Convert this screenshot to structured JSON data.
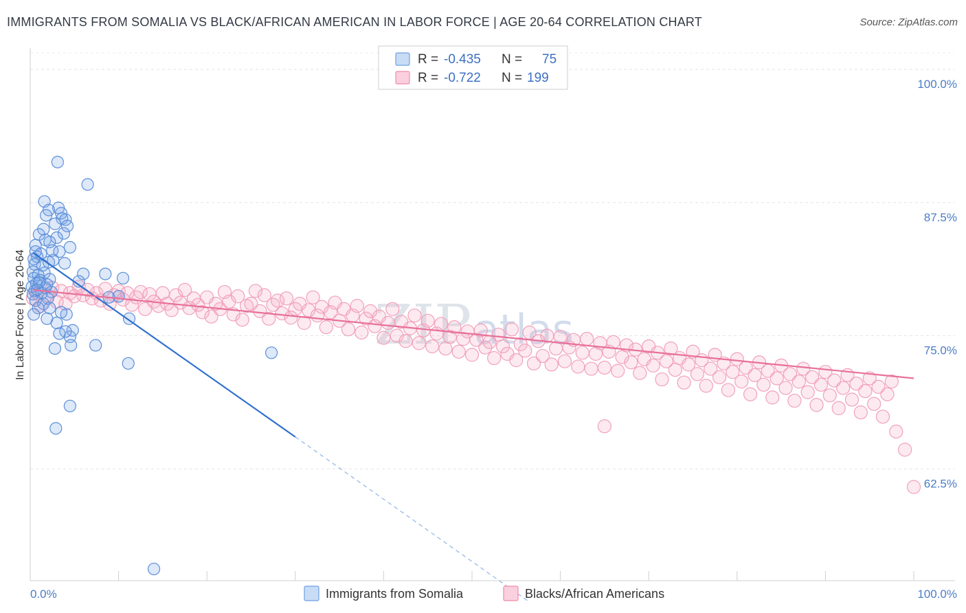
{
  "title": "IMMIGRANTS FROM SOMALIA VS BLACK/AFRICAN AMERICAN IN LABOR FORCE | AGE 20-64 CORRELATION CHART",
  "source": "Source: ZipAtlas.com",
  "watermark": "ZIPatlas",
  "legend": {
    "rows": [
      {
        "r_label": "R =",
        "r_value": "-0.435",
        "n_label": "N =",
        "n_value": "75",
        "color": "#6ea0e0"
      },
      {
        "r_label": "R =",
        "r_value": "-0.722",
        "n_label": "N =",
        "n_value": "199",
        "color": "#f08aaa"
      }
    ]
  },
  "bottom_legend": [
    "Immigrants from Somalia",
    "Blacks/African Americans"
  ],
  "chart_data": {
    "type": "scatter",
    "ylabel": "In Labor Force | Age 20-64",
    "xlim": [
      0,
      100
    ],
    "ylim": [
      52,
      102
    ],
    "x_tick_labels": [
      "0.0%",
      "100.0%"
    ],
    "y_ticks": [
      62.5,
      75.0,
      87.5,
      100.0
    ],
    "y_tick_labels": [
      "62.5%",
      "75.0%",
      "87.5%",
      "100.0%"
    ],
    "grid": "horizontal dashed",
    "series": [
      {
        "name": "Immigrants from Somalia",
        "color": "#5b8fd9",
        "trend": {
          "x0": 0.3,
          "y0": 82.8,
          "x1": 30,
          "y1": 65.5,
          "dashed_to_x": 56.5,
          "dashed_to_y": 50.0
        },
        "points": [
          [
            3.1,
            91.3
          ],
          [
            6.5,
            89.2
          ],
          [
            1.6,
            87.6
          ],
          [
            3.2,
            87.0
          ],
          [
            2.1,
            86.8
          ],
          [
            3.5,
            86.5
          ],
          [
            1.8,
            86.3
          ],
          [
            3.6,
            86.0
          ],
          [
            4.0,
            85.9
          ],
          [
            4.2,
            85.3
          ],
          [
            2.8,
            85.5
          ],
          [
            1.5,
            85.0
          ],
          [
            3.8,
            84.6
          ],
          [
            1.0,
            84.5
          ],
          [
            1.7,
            84.0
          ],
          [
            3.0,
            84.2
          ],
          [
            2.2,
            83.8
          ],
          [
            0.6,
            83.5
          ],
          [
            4.5,
            83.3
          ],
          [
            2.5,
            83.0
          ],
          [
            3.3,
            82.9
          ],
          [
            1.2,
            82.7
          ],
          [
            0.8,
            82.4
          ],
          [
            2.6,
            82.1
          ],
          [
            0.4,
            82.2
          ],
          [
            0.5,
            81.7
          ],
          [
            1.4,
            81.6
          ],
          [
            3.9,
            81.8
          ],
          [
            0.3,
            81.0
          ],
          [
            1.6,
            80.9
          ],
          [
            0.9,
            80.7
          ],
          [
            0.4,
            80.4
          ],
          [
            1.1,
            80.2
          ],
          [
            2.2,
            80.3
          ],
          [
            6.0,
            80.8
          ],
          [
            8.5,
            80.8
          ],
          [
            10.5,
            80.4
          ],
          [
            0.7,
            79.9
          ],
          [
            1.9,
            79.8
          ],
          [
            0.2,
            79.6
          ],
          [
            1.7,
            79.5
          ],
          [
            0.5,
            79.2
          ],
          [
            1.3,
            79.0
          ],
          [
            2.4,
            79.1
          ],
          [
            0.3,
            78.9
          ],
          [
            10.0,
            78.7
          ],
          [
            8.9,
            78.6
          ],
          [
            0.6,
            78.3
          ],
          [
            1.5,
            78.0
          ],
          [
            0.9,
            77.6
          ],
          [
            2.2,
            77.6
          ],
          [
            4.1,
            77.0
          ],
          [
            3.5,
            77.2
          ],
          [
            0.4,
            77.0
          ],
          [
            1.9,
            76.6
          ],
          [
            3.0,
            76.2
          ],
          [
            4.8,
            75.5
          ],
          [
            11.2,
            76.6
          ],
          [
            4.5,
            74.9
          ],
          [
            7.4,
            74.1
          ],
          [
            2.8,
            73.8
          ],
          [
            11.1,
            72.4
          ],
          [
            4.6,
            74.1
          ],
          [
            27.3,
            73.4
          ],
          [
            4.5,
            68.4
          ],
          [
            2.9,
            66.3
          ],
          [
            14.0,
            53.1
          ],
          [
            3.3,
            75.2
          ],
          [
            2.0,
            78.5
          ],
          [
            0.8,
            79.3
          ],
          [
            1.0,
            80.0
          ],
          [
            4.0,
            75.4
          ],
          [
            2.1,
            81.9
          ],
          [
            5.5,
            80.1
          ],
          [
            0.6,
            82.9
          ]
        ]
      },
      {
        "name": "Blacks/African Americans",
        "color": "#f29bb6",
        "trend": {
          "x0": 0.3,
          "y0": 79.3,
          "x1": 100,
          "y1": 71.0
        },
        "points": [
          [
            0.3,
            78.5
          ],
          [
            0.8,
            79.0
          ],
          [
            1.2,
            77.8
          ],
          [
            2.0,
            78.8
          ],
          [
            2.5,
            79.5
          ],
          [
            3.0,
            78.2
          ],
          [
            3.5,
            79.2
          ],
          [
            4.0,
            78.0
          ],
          [
            4.5,
            79.0
          ],
          [
            5.0,
            78.7
          ],
          [
            5.5,
            79.6
          ],
          [
            6.0,
            78.8
          ],
          [
            6.5,
            79.3
          ],
          [
            7.0,
            78.5
          ],
          [
            7.5,
            79.0
          ],
          [
            8.0,
            78.3
          ],
          [
            8.5,
            79.4
          ],
          [
            9.0,
            78.0
          ],
          [
            9.5,
            78.8
          ],
          [
            10.0,
            79.2
          ],
          [
            10.5,
            78.4
          ],
          [
            11.0,
            79.0
          ],
          [
            11.5,
            77.9
          ],
          [
            12.0,
            78.6
          ],
          [
            12.5,
            79.1
          ],
          [
            13.0,
            77.5
          ],
          [
            13.5,
            78.9
          ],
          [
            14.0,
            78.2
          ],
          [
            14.5,
            77.8
          ],
          [
            15.0,
            79.0
          ],
          [
            15.5,
            78.0
          ],
          [
            16.0,
            77.4
          ],
          [
            16.5,
            78.8
          ],
          [
            17.0,
            78.1
          ],
          [
            17.5,
            79.3
          ],
          [
            18.0,
            77.6
          ],
          [
            18.5,
            78.5
          ],
          [
            19.0,
            77.9
          ],
          [
            19.5,
            77.2
          ],
          [
            20.0,
            78.6
          ],
          [
            20.5,
            76.8
          ],
          [
            21.0,
            78.0
          ],
          [
            21.5,
            77.5
          ],
          [
            22.0,
            79.1
          ],
          [
            22.5,
            78.2
          ],
          [
            23.0,
            77.0
          ],
          [
            23.5,
            78.7
          ],
          [
            24.0,
            76.5
          ],
          [
            24.5,
            77.8
          ],
          [
            25.0,
            78.0
          ],
          [
            25.5,
            79.2
          ],
          [
            26.0,
            77.3
          ],
          [
            26.5,
            78.8
          ],
          [
            27.0,
            76.6
          ],
          [
            27.5,
            77.9
          ],
          [
            28.0,
            78.3
          ],
          [
            28.5,
            77.1
          ],
          [
            29.0,
            78.5
          ],
          [
            29.5,
            76.7
          ],
          [
            30.0,
            77.5
          ],
          [
            30.5,
            78.0
          ],
          [
            31.0,
            76.2
          ],
          [
            31.5,
            77.4
          ],
          [
            32.0,
            78.6
          ],
          [
            32.5,
            76.9
          ],
          [
            33.0,
            77.7
          ],
          [
            33.5,
            75.8
          ],
          [
            34.0,
            77.2
          ],
          [
            34.5,
            78.1
          ],
          [
            35.0,
            76.4
          ],
          [
            35.5,
            77.5
          ],
          [
            36.0,
            75.6
          ],
          [
            36.5,
            76.9
          ],
          [
            37.0,
            77.8
          ],
          [
            37.5,
            75.3
          ],
          [
            38.0,
            76.6
          ],
          [
            38.5,
            77.3
          ],
          [
            39.0,
            75.9
          ],
          [
            39.5,
            76.8
          ],
          [
            40.0,
            74.8
          ],
          [
            40.5,
            76.2
          ],
          [
            41.0,
            77.5
          ],
          [
            41.5,
            75.0
          ],
          [
            42.0,
            76.3
          ],
          [
            42.5,
            74.5
          ],
          [
            43.0,
            75.7
          ],
          [
            43.5,
            76.9
          ],
          [
            44.0,
            74.3
          ],
          [
            44.5,
            75.5
          ],
          [
            45.0,
            76.4
          ],
          [
            45.5,
            74.0
          ],
          [
            46.0,
            75.2
          ],
          [
            46.5,
            76.1
          ],
          [
            47.0,
            73.8
          ],
          [
            47.5,
            74.9
          ],
          [
            48.0,
            75.8
          ],
          [
            48.5,
            73.5
          ],
          [
            49.0,
            74.7
          ],
          [
            49.5,
            75.4
          ],
          [
            50.0,
            73.2
          ],
          [
            50.5,
            74.6
          ],
          [
            51.0,
            75.5
          ],
          [
            51.5,
            73.9
          ],
          [
            52.0,
            74.4
          ],
          [
            52.5,
            72.9
          ],
          [
            53.0,
            75.1
          ],
          [
            53.5,
            74.0
          ],
          [
            54.0,
            73.3
          ],
          [
            54.5,
            75.6
          ],
          [
            55.0,
            72.7
          ],
          [
            55.5,
            74.2
          ],
          [
            56.0,
            73.6
          ],
          [
            56.5,
            75.3
          ],
          [
            57.0,
            72.4
          ],
          [
            57.5,
            74.5
          ],
          [
            58.0,
            73.1
          ],
          [
            58.5,
            75.0
          ],
          [
            59.0,
            72.3
          ],
          [
            59.5,
            73.8
          ],
          [
            60.0,
            74.9
          ],
          [
            60.5,
            72.6
          ],
          [
            61.0,
            73.9
          ],
          [
            61.5,
            74.6
          ],
          [
            62.0,
            72.1
          ],
          [
            62.5,
            73.4
          ],
          [
            63.0,
            74.7
          ],
          [
            63.5,
            71.9
          ],
          [
            64.0,
            73.3
          ],
          [
            64.5,
            74.3
          ],
          [
            65.0,
            72.0
          ],
          [
            65.5,
            73.5
          ],
          [
            66.0,
            74.4
          ],
          [
            66.5,
            71.7
          ],
          [
            67.0,
            73.0
          ],
          [
            67.5,
            74.1
          ],
          [
            68.0,
            72.5
          ],
          [
            68.5,
            73.7
          ],
          [
            69.0,
            71.5
          ],
          [
            69.5,
            72.8
          ],
          [
            70.0,
            74.0
          ],
          [
            70.5,
            72.2
          ],
          [
            71.0,
            73.4
          ],
          [
            71.5,
            70.9
          ],
          [
            72.0,
            72.6
          ],
          [
            72.5,
            73.8
          ],
          [
            73.0,
            71.8
          ],
          [
            73.5,
            72.9
          ],
          [
            74.0,
            70.6
          ],
          [
            74.5,
            72.3
          ],
          [
            75.0,
            73.5
          ],
          [
            75.5,
            71.4
          ],
          [
            76.0,
            72.7
          ],
          [
            76.5,
            70.3
          ],
          [
            77.0,
            71.9
          ],
          [
            77.5,
            73.2
          ],
          [
            78.0,
            71.1
          ],
          [
            78.5,
            72.4
          ],
          [
            79.0,
            69.9
          ],
          [
            79.5,
            71.6
          ],
          [
            80.0,
            72.8
          ],
          [
            80.5,
            70.7
          ],
          [
            81.0,
            72.0
          ],
          [
            81.5,
            69.5
          ],
          [
            82.0,
            71.3
          ],
          [
            82.5,
            72.5
          ],
          [
            83.0,
            70.4
          ],
          [
            83.5,
            71.7
          ],
          [
            84.0,
            69.2
          ],
          [
            84.5,
            71.0
          ],
          [
            85.0,
            72.2
          ],
          [
            85.5,
            70.1
          ],
          [
            86.0,
            71.4
          ],
          [
            86.5,
            68.9
          ],
          [
            87.0,
            70.7
          ],
          [
            87.5,
            71.9
          ],
          [
            88.0,
            69.7
          ],
          [
            88.5,
            71.1
          ],
          [
            89.0,
            68.5
          ],
          [
            89.5,
            70.4
          ],
          [
            90.0,
            71.6
          ],
          [
            90.5,
            69.4
          ],
          [
            91.0,
            70.8
          ],
          [
            91.5,
            68.2
          ],
          [
            92.0,
            70.1
          ],
          [
            92.5,
            71.3
          ],
          [
            93.0,
            69.0
          ],
          [
            93.5,
            70.5
          ],
          [
            94.0,
            67.8
          ],
          [
            94.5,
            69.8
          ],
          [
            95.0,
            71.0
          ],
          [
            95.5,
            68.6
          ],
          [
            96.0,
            70.2
          ],
          [
            96.5,
            67.4
          ],
          [
            97.0,
            69.5
          ],
          [
            97.5,
            70.7
          ],
          [
            98.0,
            66.0
          ],
          [
            99.0,
            64.3
          ],
          [
            100.0,
            60.8
          ],
          [
            65.0,
            66.5
          ]
        ]
      }
    ]
  }
}
